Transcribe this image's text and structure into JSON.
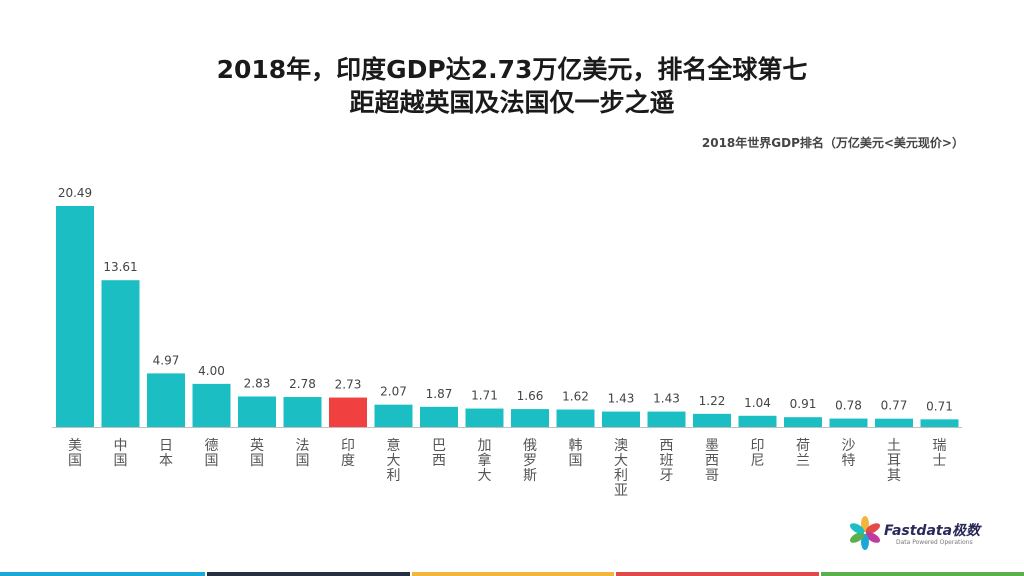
{
  "title": {
    "line1": "2018年，印度GDP达2.73万亿美元，排名全球第七",
    "line2": "距超越英国及法国仅一步之遥"
  },
  "subtitle": "2018年世界GDP排名（万亿美元<美元现价>）",
  "logo": {
    "name": "Fastdata极数",
    "tagline": "Data Powered Operations"
  },
  "colors": {
    "bar": "#1bbfc3",
    "highlight": "#f04040",
    "footer": [
      "#1aa8d6",
      "#243040",
      "#f2b63c",
      "#e24a4a",
      "#5ab04a"
    ]
  },
  "chart_data": {
    "type": "bar",
    "categories": [
      "美国",
      "中国",
      "日本",
      "德国",
      "英国",
      "法国",
      "印度",
      "意大利",
      "巴西",
      "加拿大",
      "俄罗斯",
      "韩国",
      "澳大利亚",
      "西班牙",
      "墨西哥",
      "印尼",
      "荷兰",
      "沙特",
      "土耳其",
      "瑞士"
    ],
    "values": [
      20.49,
      13.61,
      4.97,
      4.0,
      2.83,
      2.78,
      2.73,
      2.07,
      1.87,
      1.71,
      1.66,
      1.62,
      1.43,
      1.43,
      1.22,
      1.04,
      0.91,
      0.78,
      0.77,
      0.71
    ],
    "value_labels": [
      "20.49",
      "13.61",
      "4.97",
      "4.00",
      "2.83",
      "2.78",
      "2.73",
      "2.07",
      "1.87",
      "1.71",
      "1.66",
      "1.62",
      "1.43",
      "1.43",
      "1.22",
      "1.04",
      "0.91",
      "0.78",
      "0.77",
      "0.71"
    ],
    "highlight": "印度",
    "ylim": [
      0,
      20.49
    ],
    "grid": false,
    "legend": "none"
  }
}
